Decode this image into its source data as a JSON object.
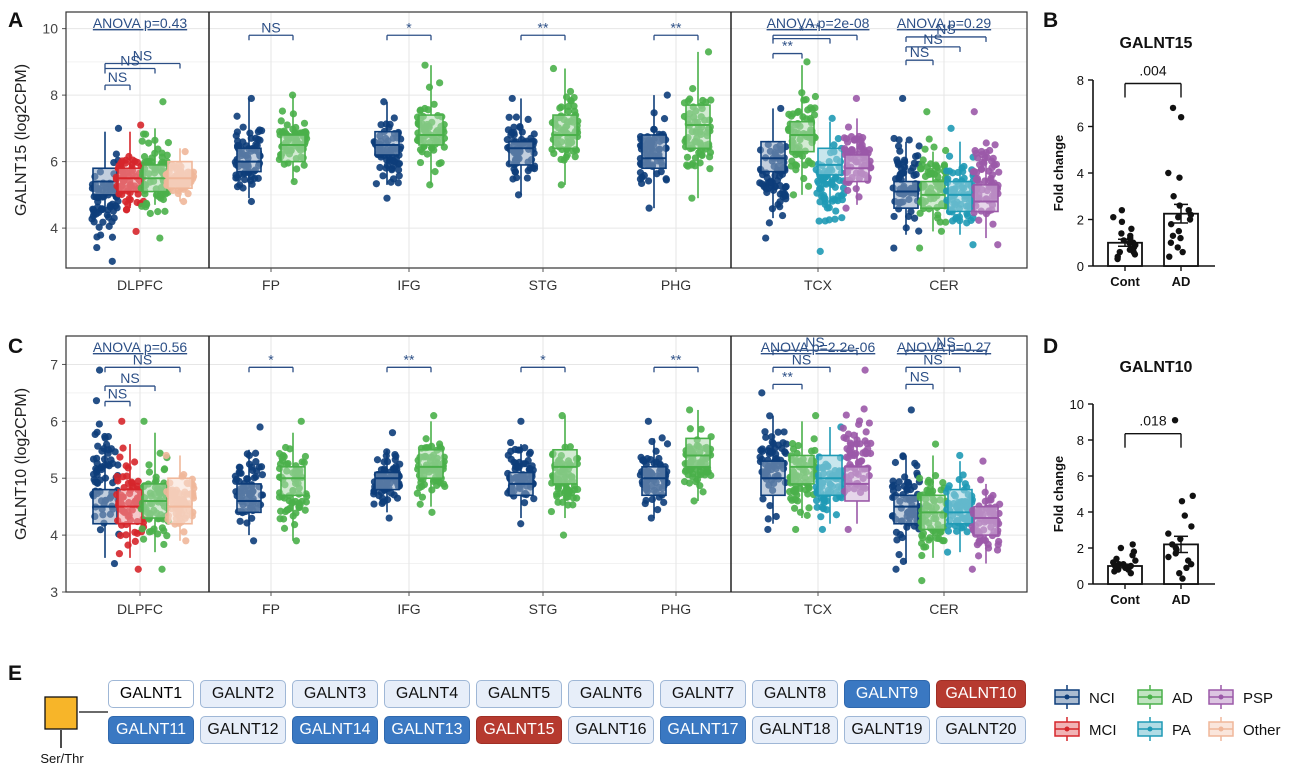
{
  "panel_labels": {
    "A": "A",
    "B": "B",
    "C": "C",
    "D": "D",
    "E": "E"
  },
  "colors": {
    "NCI": "#0d3d7a",
    "MCI": "#d6262b",
    "AD": "#4ab04a",
    "PA": "#1f9ab5",
    "PSP": "#9b59a8",
    "Other": "#f0b79a",
    "bar_edge": "#111111"
  },
  "chart_data": [
    {
      "type": "box",
      "panel": "A",
      "ylabel": "GALNT15 (log2CPM)",
      "ylim": [
        2.8,
        10.5
      ],
      "yticks": [
        4,
        6,
        8,
        10
      ],
      "regions": [
        "DLPFC",
        "FP",
        "IFG",
        "STG",
        "PHG",
        "TCX",
        "CER"
      ],
      "series": [
        {
          "region": "DLPFC",
          "group": "NCI",
          "stats": [
            4.6,
            5.0,
            5.4,
            5.8,
            6.9
          ],
          "pts_min": 3.0,
          "pts_max": 7.0
        },
        {
          "region": "DLPFC",
          "group": "MCI",
          "stats": [
            4.6,
            5.1,
            5.5,
            5.8,
            6.9
          ],
          "pts_min": 3.9,
          "pts_max": 7.1
        },
        {
          "region": "DLPFC",
          "group": "AD",
          "stats": [
            4.7,
            5.1,
            5.5,
            5.9,
            7.0
          ],
          "pts_min": 3.7,
          "pts_max": 7.8
        },
        {
          "region": "DLPFC",
          "group": "Other",
          "stats": [
            4.8,
            5.2,
            5.5,
            6.0,
            6.4
          ],
          "pts_min": 4.8,
          "pts_max": 6.3
        },
        {
          "region": "FP",
          "group": "NCI",
          "stats": [
            4.9,
            5.7,
            6.0,
            6.4,
            7.9
          ],
          "pts_min": 4.8,
          "pts_max": 7.9
        },
        {
          "region": "FP",
          "group": "AD",
          "stats": [
            5.4,
            6.0,
            6.5,
            6.8,
            8.0
          ],
          "pts_min": 5.4,
          "pts_max": 8.0
        },
        {
          "region": "IFG",
          "group": "NCI",
          "stats": [
            5.3,
            6.2,
            6.5,
            6.9,
            7.8
          ],
          "pts_min": 4.9,
          "pts_max": 7.8
        },
        {
          "region": "IFG",
          "group": "AD",
          "stats": [
            5.3,
            6.5,
            6.8,
            7.4,
            8.9
          ],
          "pts_min": 5.3,
          "pts_max": 8.9
        },
        {
          "region": "STG",
          "group": "NCI",
          "stats": [
            5.0,
            5.9,
            6.4,
            6.6,
            7.9
          ],
          "pts_min": 5.0,
          "pts_max": 7.9
        },
        {
          "region": "STG",
          "group": "AD",
          "stats": [
            5.3,
            6.4,
            6.8,
            7.4,
            8.8
          ],
          "pts_min": 5.3,
          "pts_max": 8.8
        },
        {
          "region": "PHG",
          "group": "NCI",
          "stats": [
            4.6,
            5.8,
            6.1,
            6.8,
            8.0
          ],
          "pts_min": 4.6,
          "pts_max": 8.0
        },
        {
          "region": "PHG",
          "group": "AD",
          "stats": [
            4.9,
            6.4,
            7.1,
            7.7,
            9.3
          ],
          "pts_min": 4.9,
          "pts_max": 9.3
        },
        {
          "region": "TCX",
          "group": "NCI",
          "stats": [
            4.3,
            5.7,
            6.1,
            6.6,
            7.6
          ],
          "pts_min": 3.7,
          "pts_max": 7.6
        },
        {
          "region": "TCX",
          "group": "AD",
          "stats": [
            5.0,
            6.3,
            6.8,
            7.2,
            8.9
          ],
          "pts_min": 5.0,
          "pts_max": 9.0
        },
        {
          "region": "TCX",
          "group": "PA",
          "stats": [
            4.6,
            5.6,
            5.9,
            6.4,
            7.2
          ],
          "pts_min": 3.3,
          "pts_max": 7.3
        },
        {
          "region": "TCX",
          "group": "PSP",
          "stats": [
            4.7,
            5.4,
            5.8,
            6.2,
            7.3
          ],
          "pts_min": 4.6,
          "pts_max": 7.9
        },
        {
          "region": "CER",
          "group": "NCI",
          "stats": [
            3.8,
            4.6,
            5.1,
            5.4,
            6.6
          ],
          "pts_min": 3.4,
          "pts_max": 7.9
        },
        {
          "region": "CER",
          "group": "AD",
          "stats": [
            3.9,
            4.6,
            5.0,
            5.4,
            6.3
          ],
          "pts_min": 3.4,
          "pts_max": 7.5
        },
        {
          "region": "CER",
          "group": "PA",
          "stats": [
            3.8,
            4.5,
            5.0,
            5.4,
            6.6
          ],
          "pts_min": 3.5,
          "pts_max": 7.0
        },
        {
          "region": "CER",
          "group": "PSP",
          "stats": [
            3.7,
            4.5,
            4.8,
            5.3,
            6.3
          ],
          "pts_min": 3.5,
          "pts_max": 7.5
        }
      ],
      "annotations": [
        {
          "region": "DLPFC",
          "text": "ANOVA p=0.43",
          "kind": "anova"
        },
        {
          "region": "TCX",
          "text": "ANOVA p=2e-08",
          "kind": "anova"
        },
        {
          "region": "CER",
          "text": "ANOVA p=0.29",
          "kind": "anova"
        },
        {
          "region": "DLPFC",
          "from": "NCI",
          "to": "MCI",
          "text": "NS",
          "y": 8.3
        },
        {
          "region": "DLPFC",
          "from": "NCI",
          "to": "AD",
          "text": "NS",
          "y": 8.8
        },
        {
          "region": "DLPFC",
          "from": "NCI",
          "to": "Other",
          "text": "NS",
          "y": 8.95
        },
        {
          "region": "FP",
          "from": "NCI",
          "to": "AD",
          "text": "NS",
          "y": 9.8
        },
        {
          "region": "IFG",
          "from": "NCI",
          "to": "AD",
          "text": "*",
          "y": 9.8
        },
        {
          "region": "STG",
          "from": "NCI",
          "to": "AD",
          "text": "**",
          "y": 9.8
        },
        {
          "region": "PHG",
          "from": "NCI",
          "to": "AD",
          "text": "**",
          "y": 9.8
        },
        {
          "region": "TCX",
          "from": "NCI",
          "to": "AD",
          "text": "**",
          "y": 9.25
        },
        {
          "region": "TCX",
          "from": "NCI",
          "to": "PA",
          "text": "*",
          "y": 9.7
        },
        {
          "region": "TCX",
          "from": "NCI",
          "to": "PSP",
          "text": "**",
          "y": 9.8
        },
        {
          "region": "CER",
          "from": "NCI",
          "to": "AD",
          "text": "NS",
          "y": 9.05
        },
        {
          "region": "CER",
          "from": "NCI",
          "to": "PA",
          "text": "NS",
          "y": 9.45
        },
        {
          "region": "CER",
          "from": "NCI",
          "to": "PSP",
          "text": "NS",
          "y": 9.75
        }
      ]
    },
    {
      "type": "box",
      "panel": "C",
      "ylabel": "GALNT10 (log2CPM)",
      "ylim": [
        3.0,
        7.5
      ],
      "yticks": [
        3,
        4,
        5,
        6,
        7
      ],
      "regions": [
        "DLPFC",
        "FP",
        "IFG",
        "STG",
        "PHG",
        "TCX",
        "CER"
      ],
      "series": [
        {
          "region": "DLPFC",
          "group": "NCI",
          "stats": [
            3.6,
            4.2,
            4.5,
            4.8,
            5.6
          ],
          "pts_min": 3.5,
          "pts_max": 6.9
        },
        {
          "region": "DLPFC",
          "group": "MCI",
          "stats": [
            3.6,
            4.2,
            4.5,
            4.8,
            5.6
          ],
          "pts_min": 3.4,
          "pts_max": 6.0
        },
        {
          "region": "DLPFC",
          "group": "AD",
          "stats": [
            3.7,
            4.3,
            4.6,
            4.9,
            5.8
          ],
          "pts_min": 3.4,
          "pts_max": 6.0
        },
        {
          "region": "DLPFC",
          "group": "Other",
          "stats": [
            3.9,
            4.2,
            4.5,
            5.0,
            5.4
          ],
          "pts_min": 3.9,
          "pts_max": 5.4
        },
        {
          "region": "FP",
          "group": "NCI",
          "stats": [
            4.0,
            4.4,
            4.6,
            4.9,
            5.5
          ],
          "pts_min": 3.9,
          "pts_max": 5.9
        },
        {
          "region": "FP",
          "group": "AD",
          "stats": [
            3.9,
            4.7,
            5.0,
            5.2,
            5.8
          ],
          "pts_min": 3.9,
          "pts_max": 6.0
        },
        {
          "region": "IFG",
          "group": "NCI",
          "stats": [
            4.4,
            4.8,
            5.0,
            5.1,
            5.5
          ],
          "pts_min": 4.3,
          "pts_max": 5.8
        },
        {
          "region": "IFG",
          "group": "AD",
          "stats": [
            4.5,
            5.0,
            5.2,
            5.5,
            6.0
          ],
          "pts_min": 4.4,
          "pts_max": 6.1
        },
        {
          "region": "STG",
          "group": "NCI",
          "stats": [
            4.3,
            4.7,
            4.9,
            5.1,
            5.6
          ],
          "pts_min": 4.2,
          "pts_max": 6.0
        },
        {
          "region": "STG",
          "group": "AD",
          "stats": [
            4.3,
            4.9,
            5.2,
            5.5,
            6.1
          ],
          "pts_min": 4.0,
          "pts_max": 6.1
        },
        {
          "region": "PHG",
          "group": "NCI",
          "stats": [
            4.3,
            4.7,
            5.0,
            5.2,
            5.7
          ],
          "pts_min": 4.3,
          "pts_max": 6.0
        },
        {
          "region": "PHG",
          "group": "AD",
          "stats": [
            4.6,
            5.2,
            5.4,
            5.7,
            6.2
          ],
          "pts_min": 4.6,
          "pts_max": 6.2
        },
        {
          "region": "TCX",
          "group": "NCI",
          "stats": [
            4.2,
            4.7,
            5.0,
            5.3,
            6.1
          ],
          "pts_min": 4.1,
          "pts_max": 6.5
        },
        {
          "region": "TCX",
          "group": "AD",
          "stats": [
            4.3,
            4.9,
            5.2,
            5.4,
            6.0
          ],
          "pts_min": 4.1,
          "pts_max": 6.1
        },
        {
          "region": "TCX",
          "group": "PA",
          "stats": [
            4.2,
            4.7,
            5.0,
            5.4,
            5.9
          ],
          "pts_min": 4.1,
          "pts_max": 5.9
        },
        {
          "region": "TCX",
          "group": "PSP",
          "stats": [
            4.2,
            4.6,
            4.9,
            5.2,
            5.8
          ],
          "pts_min": 4.1,
          "pts_max": 6.9
        },
        {
          "region": "CER",
          "group": "NCI",
          "stats": [
            3.5,
            4.2,
            4.5,
            4.7,
            5.4
          ],
          "pts_min": 3.4,
          "pts_max": 6.2
        },
        {
          "region": "CER",
          "group": "AD",
          "stats": [
            3.6,
            4.1,
            4.4,
            4.7,
            5.4
          ],
          "pts_min": 3.2,
          "pts_max": 5.6
        },
        {
          "region": "CER",
          "group": "PA",
          "stats": [
            3.7,
            4.2,
            4.4,
            4.8,
            5.3
          ],
          "pts_min": 3.7,
          "pts_max": 5.4
        },
        {
          "region": "CER",
          "group": "PSP",
          "stats": [
            3.5,
            4.0,
            4.3,
            4.5,
            4.9
          ],
          "pts_min": 3.4,
          "pts_max": 5.3
        }
      ],
      "annotations": [
        {
          "region": "DLPFC",
          "text": "ANOVA p=0.56",
          "kind": "anova"
        },
        {
          "region": "TCX",
          "text": "ANOVA p=2.2e-06",
          "kind": "anova"
        },
        {
          "region": "CER",
          "text": "ANOVA p=0.27",
          "kind": "anova"
        },
        {
          "region": "DLPFC",
          "from": "NCI",
          "to": "MCI",
          "text": "NS",
          "y": 6.35
        },
        {
          "region": "DLPFC",
          "from": "NCI",
          "to": "AD",
          "text": "NS",
          "y": 6.62
        },
        {
          "region": "DLPFC",
          "from": "NCI",
          "to": "Other",
          "text": "NS",
          "y": 6.95
        },
        {
          "region": "FP",
          "from": "NCI",
          "to": "AD",
          "text": "*",
          "y": 6.95
        },
        {
          "region": "IFG",
          "from": "NCI",
          "to": "AD",
          "text": "**",
          "y": 6.95
        },
        {
          "region": "STG",
          "from": "NCI",
          "to": "AD",
          "text": "*",
          "y": 6.95
        },
        {
          "region": "PHG",
          "from": "NCI",
          "to": "AD",
          "text": "**",
          "y": 6.95
        },
        {
          "region": "TCX",
          "from": "NCI",
          "to": "AD",
          "text": "**",
          "y": 6.65
        },
        {
          "region": "TCX",
          "from": "NCI",
          "to": "PA",
          "text": "NS",
          "y": 6.95
        },
        {
          "region": "TCX",
          "from": "NCI",
          "to": "PSP",
          "text": "NS",
          "y": 7.25
        },
        {
          "region": "CER",
          "from": "NCI",
          "to": "AD",
          "text": "NS",
          "y": 6.65
        },
        {
          "region": "CER",
          "from": "NCI",
          "to": "PA",
          "text": "NS",
          "y": 6.95
        },
        {
          "region": "CER",
          "from": "NCI",
          "to": "PSP",
          "text": "NS",
          "y": 7.25
        }
      ]
    },
    {
      "type": "bar",
      "panel": "B",
      "title": "GALNT15",
      "ylabel": "Fold change",
      "categories": [
        "Cont",
        "AD"
      ],
      "values": [
        1.0,
        2.25
      ],
      "errors": [
        0.15,
        0.4
      ],
      "ylim": [
        0,
        8
      ],
      "yticks": [
        0,
        2,
        4,
        6,
        8
      ],
      "pvalue": ".004",
      "points": [
        [
          0.3,
          0.4,
          0.5,
          0.6,
          0.6,
          0.7,
          0.8,
          0.9,
          1.0,
          1.0,
          1.1,
          1.2,
          1.3,
          1.4,
          1.6,
          1.9,
          2.1,
          2.4
        ],
        [
          0.4,
          0.6,
          0.8,
          1.0,
          1.2,
          1.3,
          1.5,
          1.8,
          2.0,
          2.1,
          2.2,
          2.4,
          2.6,
          3.0,
          3.8,
          4.0,
          6.4,
          6.8
        ]
      ]
    },
    {
      "type": "bar",
      "panel": "D",
      "title": "GALNT10",
      "ylabel": "Fold change",
      "categories": [
        "Cont",
        "AD"
      ],
      "values": [
        1.0,
        2.2
      ],
      "errors": [
        0.1,
        0.45
      ],
      "ylim": [
        0,
        10
      ],
      "yticks": [
        0,
        2,
        4,
        6,
        8,
        10
      ],
      "pvalue": ".018",
      "points": [
        [
          0.6,
          0.7,
          0.8,
          0.8,
          0.9,
          0.9,
          1.0,
          1.0,
          1.1,
          1.1,
          1.2,
          1.3,
          1.4,
          1.6,
          1.8,
          2.0,
          2.2
        ],
        [
          0.3,
          0.6,
          0.9,
          1.1,
          1.3,
          1.5,
          1.7,
          1.9,
          2.0,
          2.2,
          2.5,
          2.8,
          3.2,
          3.8,
          4.6,
          4.9,
          9.1
        ]
      ]
    }
  ],
  "legend": {
    "items": [
      {
        "label": "NCI",
        "group": "NCI"
      },
      {
        "label": "AD",
        "group": "AD"
      },
      {
        "label": "PSP",
        "group": "PSP"
      },
      {
        "label": "MCI",
        "group": "MCI"
      },
      {
        "label": "PA",
        "group": "PA"
      },
      {
        "label": "Other",
        "group": "Other"
      }
    ]
  },
  "galnt_grid": {
    "rows": [
      [
        {
          "label": "GALNT1",
          "style": "first"
        },
        {
          "label": "GALNT2",
          "style": "plain"
        },
        {
          "label": "GALNT3",
          "style": "plain"
        },
        {
          "label": "GALNT4",
          "style": "plain"
        },
        {
          "label": "GALNT5",
          "style": "plain"
        },
        {
          "label": "GALNT6",
          "style": "plain"
        },
        {
          "label": "GALNT7",
          "style": "plain"
        },
        {
          "label": "GALNT8",
          "style": "plain"
        },
        {
          "label": "GALNT9",
          "style": "hi-blue"
        },
        {
          "label": "GALNT10",
          "style": "hi-red"
        }
      ],
      [
        {
          "label": "GALNT11",
          "style": "hi-blue"
        },
        {
          "label": "GALNT12",
          "style": "plain"
        },
        {
          "label": "GALNT14",
          "style": "hi-blue"
        },
        {
          "label": "GALNT13",
          "style": "hi-blue"
        },
        {
          "label": "GALNT15",
          "style": "hi-red"
        },
        {
          "label": "GALNT16",
          "style": "plain"
        },
        {
          "label": "GALNT17",
          "style": "hi-blue"
        },
        {
          "label": "GALNT18",
          "style": "plain"
        },
        {
          "label": "GALNT19",
          "style": "plain"
        },
        {
          "label": "GALNT20",
          "style": "plain"
        }
      ]
    ],
    "residue_label": "Ser/Thr",
    "glycan_color": "#f7b529"
  }
}
